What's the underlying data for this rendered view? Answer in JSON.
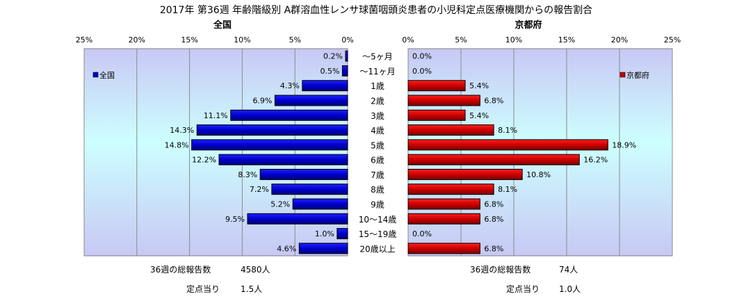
{
  "title": "2017年 第36週 年齢階級別 A群溶血性レンサ球菌咽頭炎患者の小児科定点医療機関からの報告割合",
  "chart_data": [
    {
      "type": "bar",
      "orientation": "horizontal",
      "direction": "leftward",
      "title": "全国",
      "legend": "全国",
      "legend_position": "top-left",
      "color": "#0000cc",
      "xlim": [
        0,
        25
      ],
      "xticks": [
        "25%",
        "20%",
        "15%",
        "10%",
        "5%",
        "0%"
      ],
      "grid": true,
      "categories": [
        "〜5ヶ月",
        "〜11ヶ月",
        "1歳",
        "2歳",
        "3歳",
        "4歳",
        "5歳",
        "6歳",
        "7歳",
        "8歳",
        "9歳",
        "10〜14歳",
        "15〜19歳",
        "20歳以上"
      ],
      "values": [
        0.2,
        0.5,
        4.3,
        6.9,
        11.1,
        14.3,
        14.8,
        12.2,
        8.3,
        7.2,
        5.2,
        9.5,
        1.0,
        4.6
      ],
      "labels": [
        "0.2%",
        "0.5%",
        "4.3%",
        "6.9%",
        "11.1%",
        "14.3%",
        "14.8%",
        "12.2%",
        "8.3%",
        "7.2%",
        "5.2%",
        "9.5%",
        "1.0%",
        "4.6%"
      ]
    },
    {
      "type": "bar",
      "orientation": "horizontal",
      "direction": "rightward",
      "title": "京都府",
      "legend": "京都府",
      "legend_position": "top-right",
      "color": "#cc0000",
      "xlim": [
        0,
        25
      ],
      "xticks": [
        "0%",
        "5%",
        "10%",
        "15%",
        "20%",
        "25%"
      ],
      "grid": true,
      "categories": [
        "〜5ヶ月",
        "〜11ヶ月",
        "1歳",
        "2歳",
        "3歳",
        "4歳",
        "5歳",
        "6歳",
        "7歳",
        "8歳",
        "9歳",
        "10〜14歳",
        "15〜19歳",
        "20歳以上"
      ],
      "values": [
        0.0,
        0.0,
        5.4,
        6.8,
        5.4,
        8.1,
        18.9,
        16.2,
        10.8,
        8.1,
        6.8,
        6.8,
        0.0,
        6.8
      ],
      "labels": [
        "0.0%",
        "0.0%",
        "5.4%",
        "6.8%",
        "5.4%",
        "8.1%",
        "18.9%",
        "16.2%",
        "10.8%",
        "8.1%",
        "6.8%",
        "6.8%",
        "0.0%",
        "6.8%"
      ]
    }
  ],
  "footer": {
    "left_total_label": "36週の総報告数",
    "left_total_value": "4580人",
    "left_per_label": "定点当り",
    "left_per_value": "1.5人",
    "right_total_label": "36週の総報告数",
    "right_total_value": "74人",
    "right_per_label": "定点当り",
    "right_per_value": "1.0人"
  }
}
